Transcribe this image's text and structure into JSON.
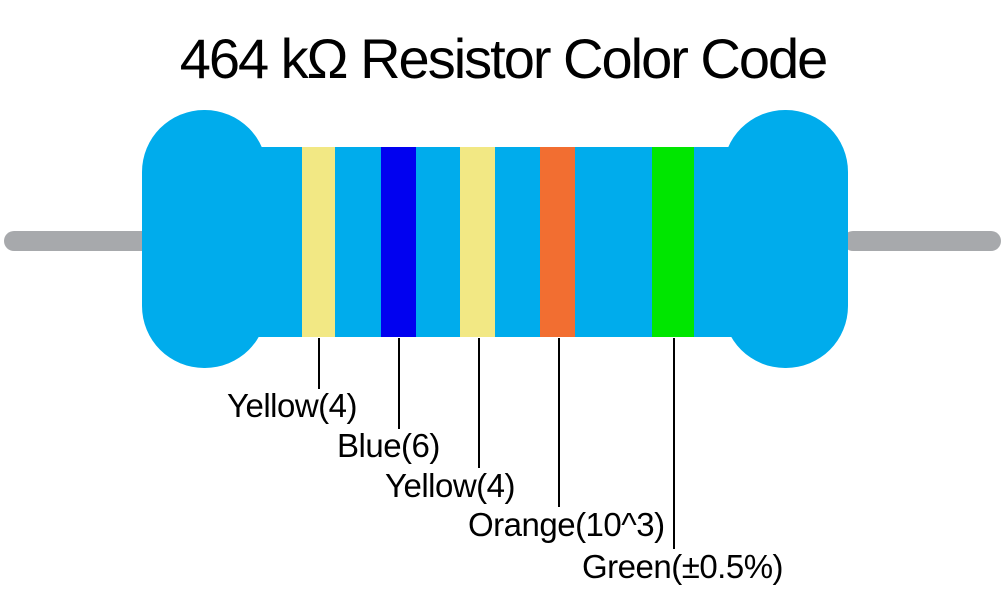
{
  "title": "464 kΩ Resistor Color Code",
  "colors": {
    "background": "#FFFFFF",
    "resistor_body": "#00ACEC",
    "lead": "#A7A9AC",
    "leader_line": "#000000",
    "text": "#000000"
  },
  "resistor": {
    "bands": [
      {
        "label": "Yellow(4)",
        "color": "#F2E884"
      },
      {
        "label": "Blue(6)",
        "color": "#0101F0"
      },
      {
        "label": "Yellow(4)",
        "color": "#F2E884"
      },
      {
        "label": "Orange(10^3)",
        "color": "#F26E31"
      },
      {
        "label": "Green(±0.5%)",
        "color": "#00E600"
      }
    ]
  }
}
